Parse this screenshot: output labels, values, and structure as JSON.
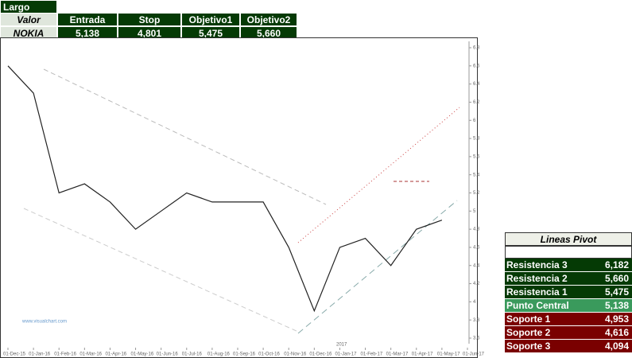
{
  "trade_table": {
    "title": "Largo",
    "headers": [
      "Valor",
      "Entrada",
      "Stop",
      "Objetivo1",
      "Objetivo2"
    ],
    "row": [
      "NOKIA",
      "5,138",
      "4,801",
      "5,475",
      "5,660"
    ]
  },
  "pivot_table": {
    "title": "Lineas Pivot",
    "rows": [
      {
        "name": "Resistencia 3",
        "value": "6,182",
        "color": "#053a05"
      },
      {
        "name": "Resistencia 2",
        "value": "5,660",
        "color": "#053a05"
      },
      {
        "name": "Resistencia 1",
        "value": "5,475",
        "color": "#053a05"
      },
      {
        "name": "Punto Central",
        "value": "5,138",
        "color": "#3a9a5c"
      },
      {
        "name": "Soporte 1",
        "value": "4,953",
        "color": "#7a0000"
      },
      {
        "name": "Soporte 2",
        "value": "4,616",
        "color": "#7a0000"
      },
      {
        "name": "Soporte 3",
        "value": "4,094",
        "color": "#7a0000"
      }
    ]
  },
  "chart_data": {
    "type": "line",
    "categories": [
      "01-Dec-15",
      "01-Jan-16",
      "01-Feb-16",
      "01-Mar-16",
      "01-Apr-16",
      "01-May-16",
      "01-Jun-16",
      "01-Jul-16",
      "01-Aug-16",
      "01-Sep-16",
      "01-Oct-16",
      "01-Nov-16",
      "01-Dec-16",
      "01-Jan-17",
      "01-Feb-17",
      "01-Mar-17",
      "01-Apr-17",
      "01-May-17",
      "01-Jun-17"
    ],
    "values": [
      6.6,
      6.3,
      5.2,
      5.3,
      5.1,
      4.8,
      5.0,
      5.2,
      5.1,
      5.1,
      5.1,
      4.6,
      3.9,
      4.6,
      4.7,
      4.4,
      4.8,
      4.9,
      null
    ],
    "color": "#222222",
    "ylim": [
      3.6,
      6.8
    ],
    "yticks": [
      3.6,
      3.8,
      4,
      4.2,
      4.4,
      4.6,
      4.8,
      5,
      5.2,
      5.4,
      5.6,
      5.8,
      6,
      6.2,
      6.4,
      6.6,
      6.8
    ],
    "annotations": [
      "2017",
      "www.visualchart.com"
    ]
  }
}
